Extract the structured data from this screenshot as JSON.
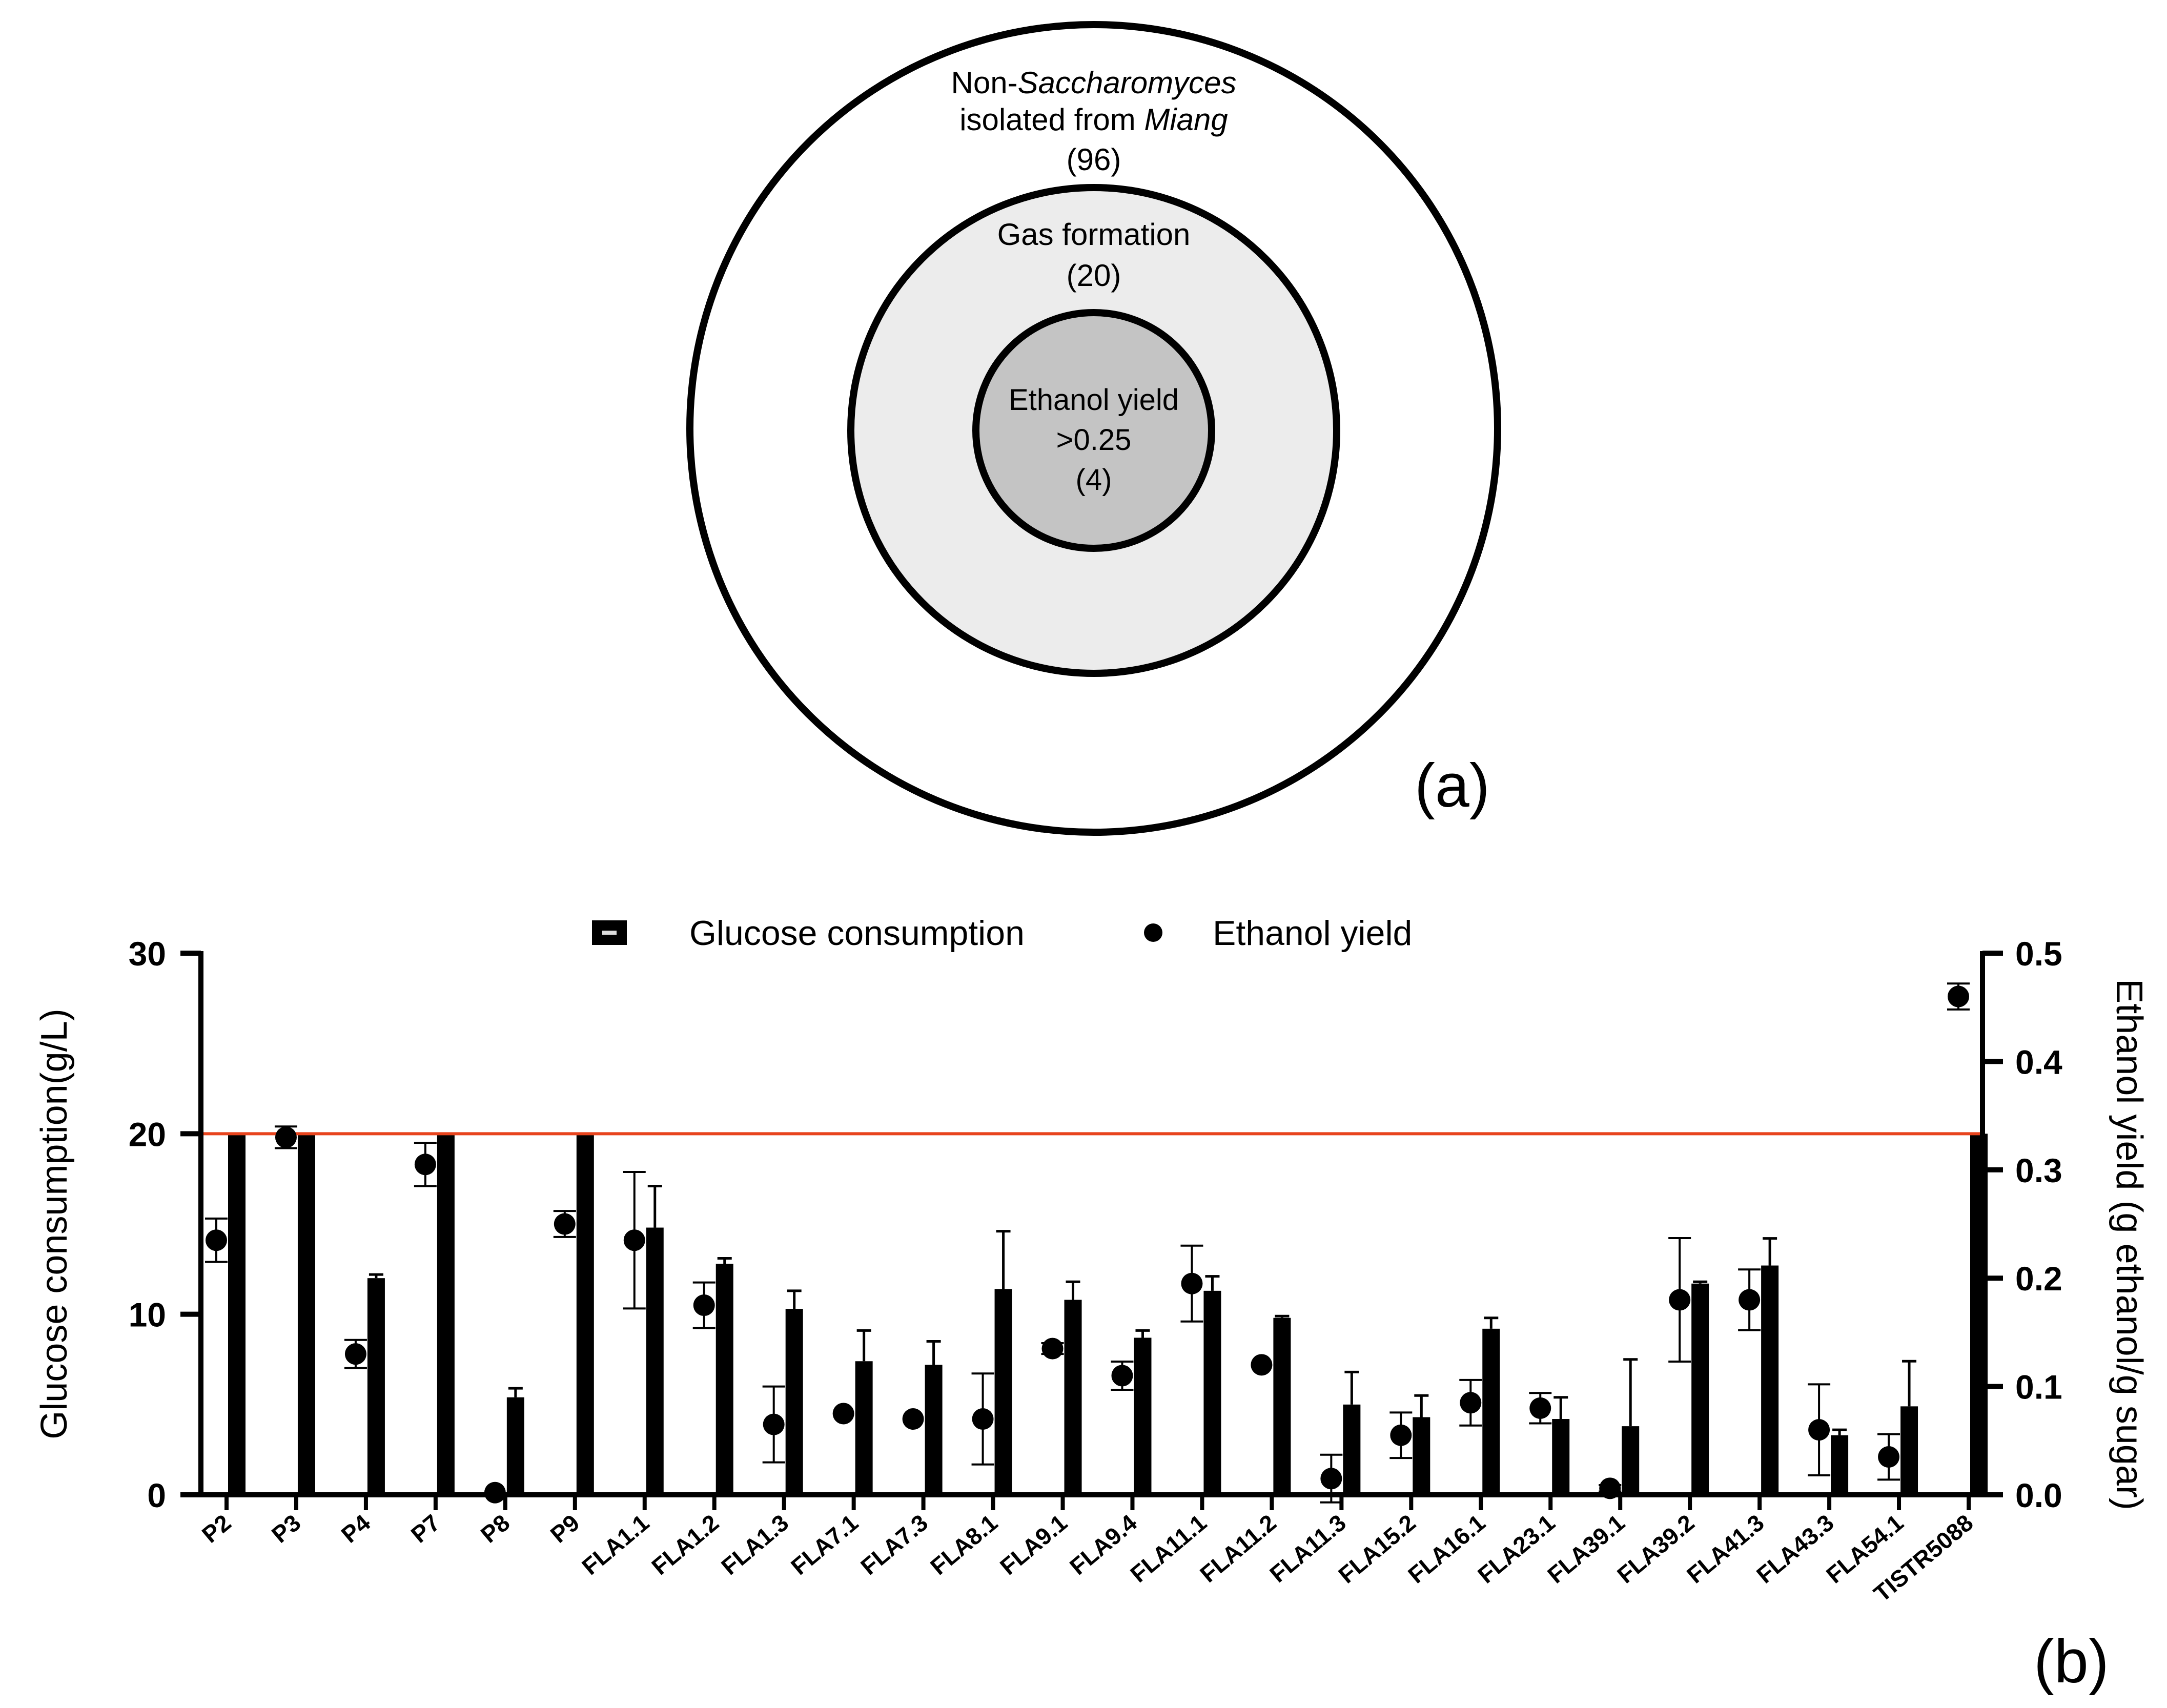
{
  "panel_a": {
    "label": "(a)",
    "outer": {
      "line1_prefix": "Non-",
      "line1_italic": "Saccharomyces",
      "line2_prefix": "isolated from ",
      "line2_italic": "Miang",
      "count": "(96)"
    },
    "middle": {
      "line1": "Gas formation",
      "count": "(20)"
    },
    "inner": {
      "line1": "Ethanol yield",
      "line2": ">0.25",
      "count": "(4)"
    },
    "colors": {
      "outer": "#ffffff",
      "middle": "#ececec",
      "inner": "#c4c4c4"
    }
  },
  "panel_b_label": "(b)",
  "chart_data": {
    "type": "bar",
    "title": "",
    "xlabel": "",
    "ylabel": "Glucose consumption(g/L)",
    "y2label": "Ethanol yield (g ethanol/g sugar)",
    "ylim": [
      0,
      30
    ],
    "y2lim": [
      0,
      0.5
    ],
    "yticks": [
      "0",
      "10",
      "20",
      "30"
    ],
    "y2ticks": [
      "0.0",
      "0.1",
      "0.2",
      "0.3",
      "0.4",
      "0.5"
    ],
    "legend": [
      "Glucose consumption",
      "Ethanol yield"
    ],
    "legend_position": "top",
    "reference_line": {
      "y": 20,
      "color": "#e8441d"
    },
    "categories": [
      "P2",
      "P3",
      "P4",
      "P7",
      "P8",
      "P9",
      "FLA1.1",
      "FLA1.2",
      "FLA1.3",
      "FLA7.1",
      "FLA7.3",
      "FLA8.1",
      "FLA9.1",
      "FLA9.4",
      "FLA11.1",
      "FLA11.2",
      "FLA11.3",
      "FLA15.2",
      "FLA16.1",
      "FLA23.1",
      "FLA39.1",
      "FLA39.2",
      "FLA41.3",
      "FLA43.3",
      "FLA54.1",
      "TISTR5088"
    ],
    "series": [
      {
        "name": "Glucose consumption",
        "axis": "left",
        "values": [
          20,
          20,
          12.0,
          20,
          5.4,
          20,
          14.8,
          12.8,
          10.3,
          7.4,
          7.2,
          11.4,
          10.8,
          8.7,
          11.3,
          9.8,
          5.0,
          4.3,
          9.2,
          4.2,
          3.8,
          11.7,
          12.7,
          3.3,
          4.9,
          20
        ],
        "errors": [
          0,
          0,
          0.2,
          0,
          0.5,
          0,
          2.3,
          0.3,
          1.0,
          1.7,
          1.3,
          3.2,
          1.0,
          0.4,
          0.8,
          0.1,
          1.8,
          1.2,
          0.6,
          1.2,
          3.7,
          0.1,
          1.5,
          0.3,
          2.5,
          0
        ]
      },
      {
        "name": "Ethanol yield",
        "axis": "right",
        "values": [
          0.235,
          0.33,
          0.13,
          0.305,
          0.002,
          0.25,
          0.235,
          0.175,
          0.065,
          0.075,
          0.07,
          0.07,
          0.135,
          0.11,
          0.195,
          0.12,
          0.015,
          0.055,
          0.085,
          0.08,
          0.006,
          0.18,
          0.18,
          0.06,
          0.035,
          0.46
        ],
        "errors": [
          0.02,
          0.01,
          0.013,
          0.02,
          0,
          0.012,
          0.063,
          0.021,
          0.035,
          0,
          0,
          0.042,
          0.005,
          0.013,
          0.035,
          0,
          0.022,
          0.021,
          0.021,
          0.014,
          0.003,
          0.057,
          0.028,
          0.042,
          0.021,
          0.012
        ]
      }
    ]
  }
}
